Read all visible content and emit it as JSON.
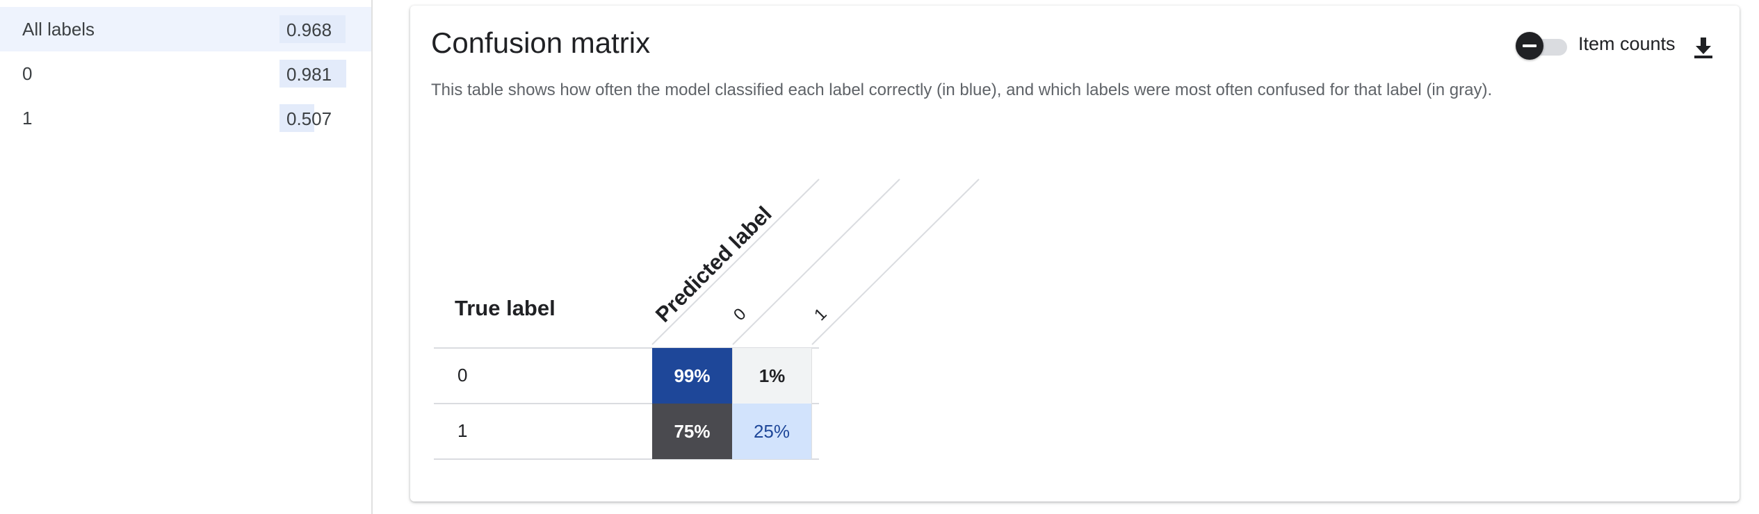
{
  "sidebar": {
    "items": [
      {
        "label": "All labels",
        "score": "0.968",
        "score_fraction": 0.968,
        "selected": true
      },
      {
        "label": "0",
        "score": "0.981",
        "score_fraction": 0.981,
        "selected": false
      },
      {
        "label": "1",
        "score": "0.507",
        "score_fraction": 0.507,
        "selected": false
      }
    ]
  },
  "card": {
    "title": "Confusion matrix",
    "description": "This table shows how often the model classified each label correctly (in blue), and which labels were most often confused for that label (in gray).",
    "toggle_label": "Item counts",
    "toggle_on": false
  },
  "matrix": {
    "true_label_heading": "True label",
    "predicted_label_heading": "Predicted label",
    "columns": [
      "0",
      "1"
    ],
    "rows": [
      {
        "label": "0",
        "cells": [
          "99%",
          "1%"
        ]
      },
      {
        "label": "1",
        "cells": [
          "75%",
          "25%"
        ]
      }
    ],
    "colors": {
      "correct_strong": "#1e4799",
      "correct_light": "#d2e3fc",
      "confused_strong": "#4a4a4f",
      "confused_light": "#f1f3f4",
      "correct_light_text": "#1e4799"
    }
  },
  "icons": {
    "toggle": "minus-icon",
    "download": "download-icon"
  }
}
